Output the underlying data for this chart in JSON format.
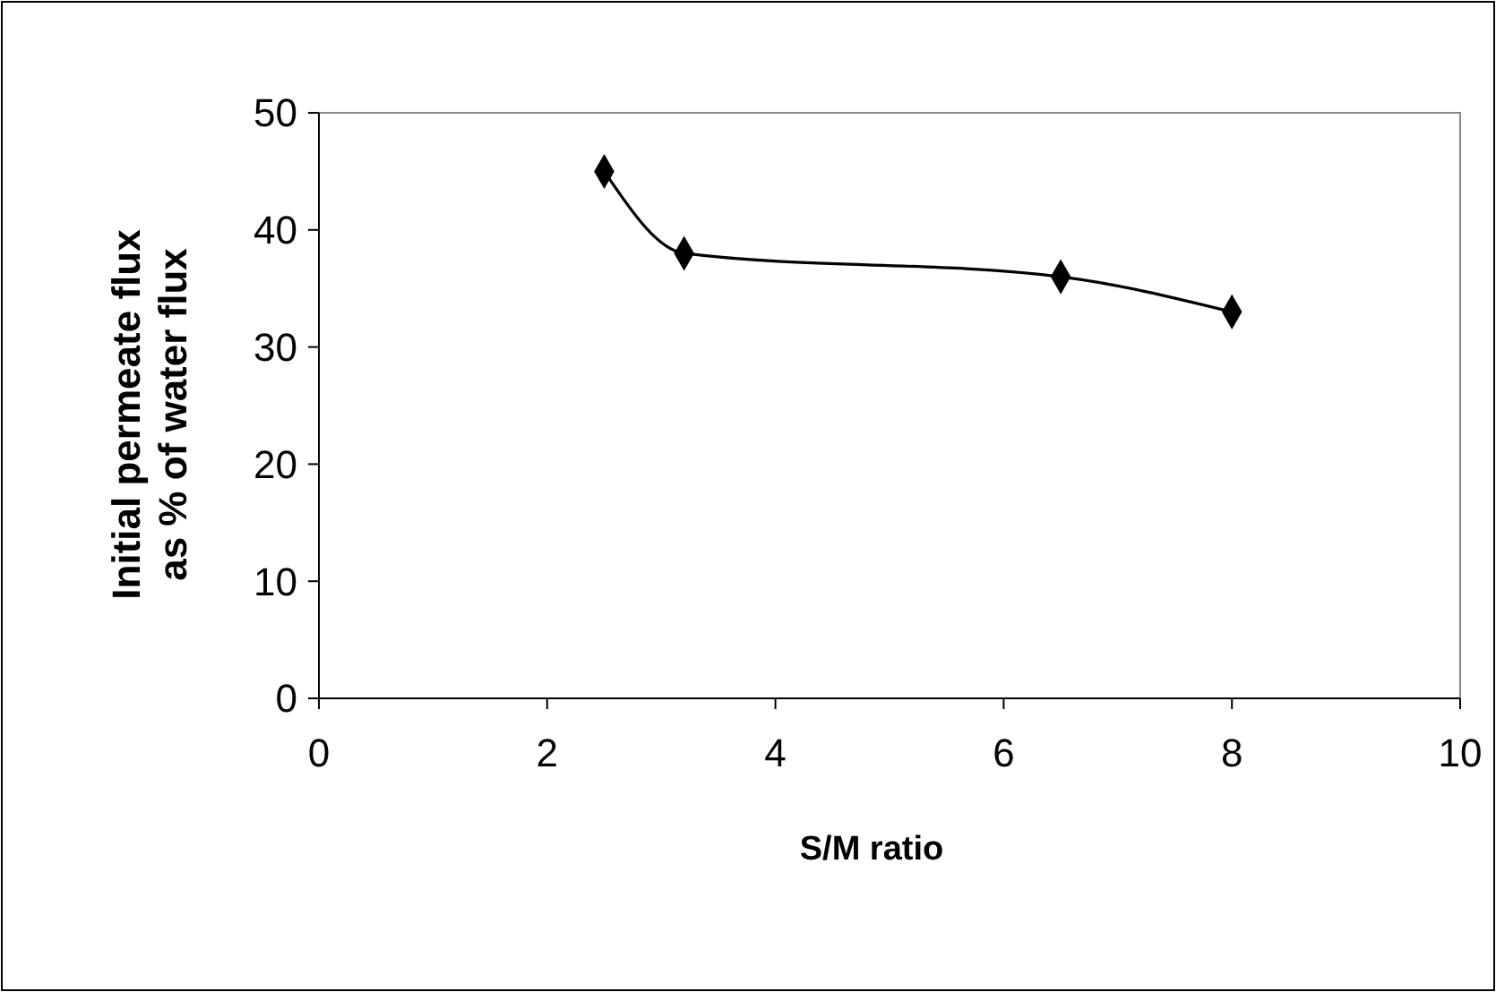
{
  "chart_data": {
    "type": "line",
    "xlabel": "S/M ratio",
    "ylabel": "Initial permeate flux as % of water flux",
    "x": [
      2.5,
      3.2,
      6.5,
      8
    ],
    "series": [
      {
        "color": "#000000",
        "values": [
          45,
          38,
          36,
          33
        ]
      }
    ],
    "xlim": [
      0,
      10
    ],
    "xticks": [
      0,
      2,
      4,
      6,
      8,
      10
    ],
    "ylim": [
      0,
      50
    ],
    "yticks": [
      0,
      10,
      20,
      30,
      40,
      50
    ],
    "grid": false,
    "marker": "diamond",
    "line_style": "solid"
  }
}
